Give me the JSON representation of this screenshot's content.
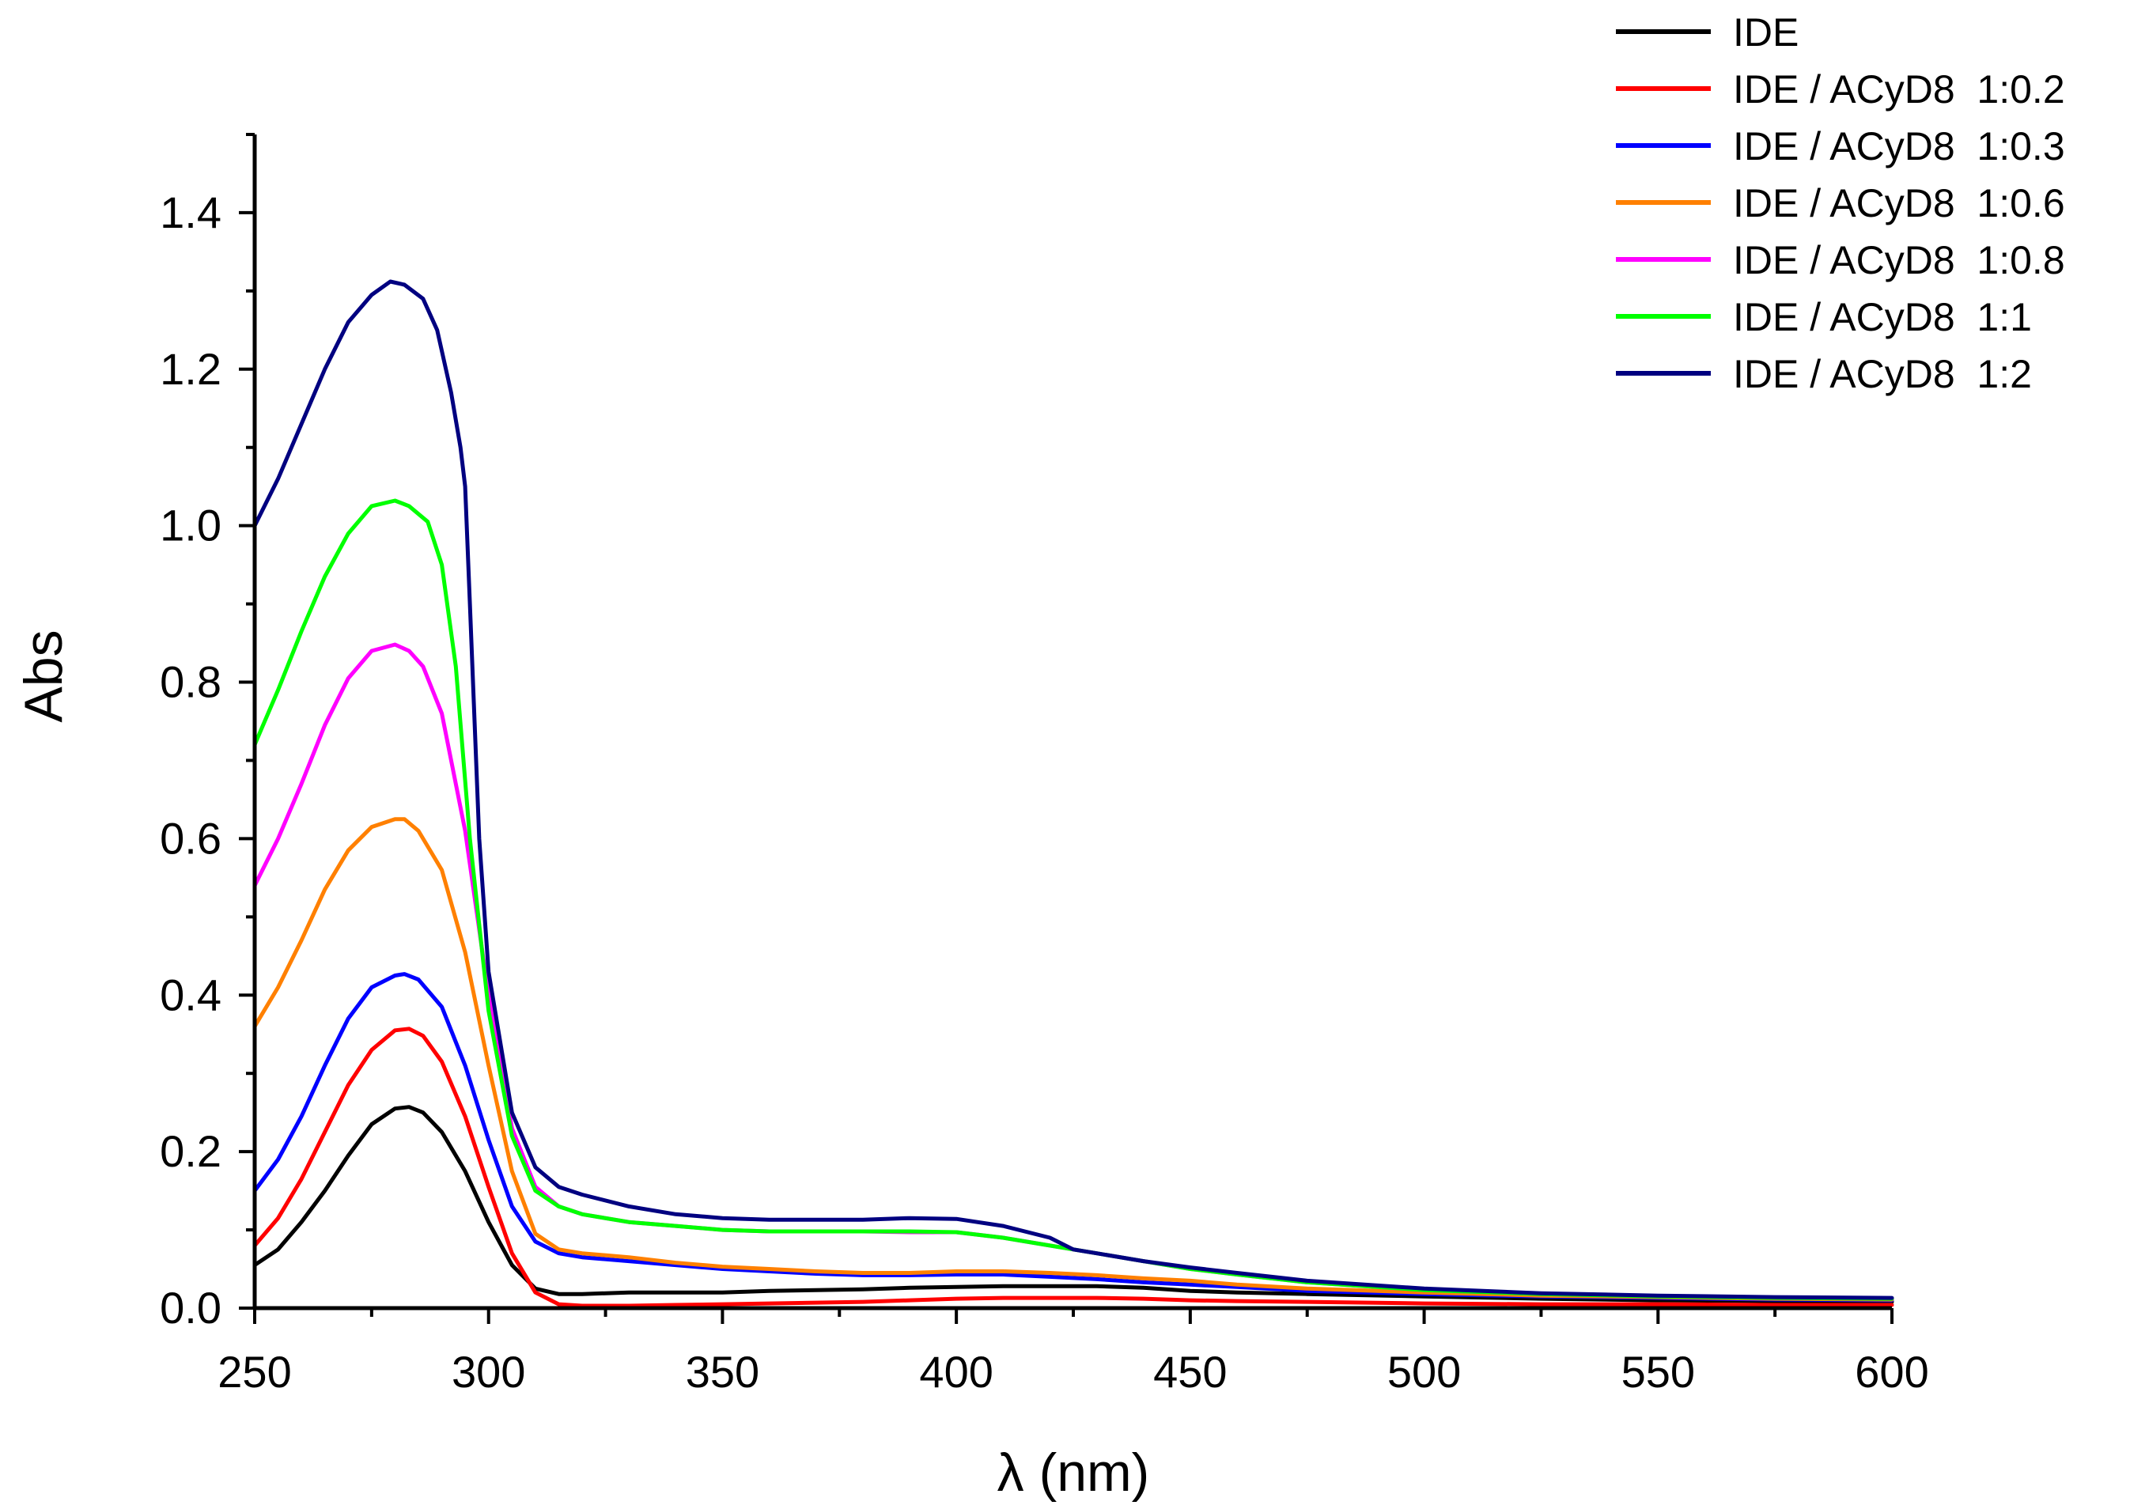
{
  "chart_data": {
    "type": "line",
    "title": "",
    "xlabel": "λ (nm)",
    "ylabel": "Abs",
    "xlim": [
      250,
      600
    ],
    "ylim": [
      0,
      1.5
    ],
    "xticks": [
      250,
      300,
      350,
      400,
      450,
      500,
      550,
      600
    ],
    "yticks": [
      0.0,
      0.2,
      0.4,
      0.6,
      0.8,
      1.0,
      1.2,
      1.4
    ],
    "xtick_labels": [
      "250",
      "300",
      "350",
      "400",
      "450",
      "500",
      "550",
      "600"
    ],
    "ytick_labels": [
      "0.0",
      "0.2",
      "0.4",
      "0.6",
      "0.8",
      "1.0",
      "1.2",
      "1.4"
    ],
    "grid": false,
    "legend_position": "top-right",
    "series": [
      {
        "name": "IDE",
        "color": "#000000",
        "points": [
          [
            250,
            0.055
          ],
          [
            255,
            0.075
          ],
          [
            260,
            0.11
          ],
          [
            265,
            0.15
          ],
          [
            270,
            0.195
          ],
          [
            275,
            0.235
          ],
          [
            280,
            0.255
          ],
          [
            283,
            0.257
          ],
          [
            286,
            0.25
          ],
          [
            290,
            0.225
          ],
          [
            295,
            0.175
          ],
          [
            300,
            0.11
          ],
          [
            305,
            0.055
          ],
          [
            310,
            0.025
          ],
          [
            315,
            0.018
          ],
          [
            320,
            0.018
          ],
          [
            330,
            0.02
          ],
          [
            340,
            0.02
          ],
          [
            350,
            0.02
          ],
          [
            360,
            0.022
          ],
          [
            370,
            0.023
          ],
          [
            380,
            0.024
          ],
          [
            390,
            0.026
          ],
          [
            400,
            0.027
          ],
          [
            410,
            0.028
          ],
          [
            420,
            0.028
          ],
          [
            430,
            0.028
          ],
          [
            440,
            0.026
          ],
          [
            450,
            0.022
          ],
          [
            460,
            0.02
          ],
          [
            475,
            0.018
          ],
          [
            500,
            0.015
          ],
          [
            525,
            0.012
          ],
          [
            550,
            0.01
          ],
          [
            575,
            0.009
          ],
          [
            600,
            0.008
          ]
        ]
      },
      {
        "name": "IDE / ACyD8  1:0.2",
        "color": "#ff0000",
        "points": [
          [
            250,
            0.08
          ],
          [
            255,
            0.115
          ],
          [
            260,
            0.165
          ],
          [
            265,
            0.225
          ],
          [
            270,
            0.285
          ],
          [
            275,
            0.33
          ],
          [
            280,
            0.355
          ],
          [
            283,
            0.357
          ],
          [
            286,
            0.348
          ],
          [
            290,
            0.315
          ],
          [
            295,
            0.245
          ],
          [
            300,
            0.155
          ],
          [
            305,
            0.07
          ],
          [
            310,
            0.02
          ],
          [
            315,
            0.005
          ],
          [
            320,
            0.003
          ],
          [
            330,
            0.003
          ],
          [
            340,
            0.004
          ],
          [
            350,
            0.005
          ],
          [
            360,
            0.006
          ],
          [
            370,
            0.007
          ],
          [
            380,
            0.008
          ],
          [
            390,
            0.01
          ],
          [
            400,
            0.012
          ],
          [
            410,
            0.013
          ],
          [
            420,
            0.013
          ],
          [
            430,
            0.013
          ],
          [
            440,
            0.012
          ],
          [
            450,
            0.01
          ],
          [
            460,
            0.009
          ],
          [
            475,
            0.008
          ],
          [
            500,
            0.006
          ],
          [
            525,
            0.005
          ],
          [
            550,
            0.005
          ],
          [
            575,
            0.004
          ],
          [
            600,
            0.004
          ]
        ]
      },
      {
        "name": "IDE / ACyD8  1:0.3",
        "color": "#0000ff",
        "points": [
          [
            250,
            0.15
          ],
          [
            255,
            0.19
          ],
          [
            260,
            0.245
          ],
          [
            265,
            0.31
          ],
          [
            270,
            0.37
          ],
          [
            275,
            0.41
          ],
          [
            280,
            0.425
          ],
          [
            282,
            0.427
          ],
          [
            285,
            0.42
          ],
          [
            290,
            0.385
          ],
          [
            295,
            0.31
          ],
          [
            300,
            0.215
          ],
          [
            305,
            0.13
          ],
          [
            310,
            0.085
          ],
          [
            315,
            0.07
          ],
          [
            320,
            0.065
          ],
          [
            330,
            0.06
          ],
          [
            340,
            0.055
          ],
          [
            350,
            0.05
          ],
          [
            360,
            0.047
          ],
          [
            370,
            0.044
          ],
          [
            380,
            0.042
          ],
          [
            390,
            0.042
          ],
          [
            400,
            0.043
          ],
          [
            410,
            0.043
          ],
          [
            420,
            0.04
          ],
          [
            430,
            0.037
          ],
          [
            440,
            0.033
          ],
          [
            450,
            0.03
          ],
          [
            460,
            0.027
          ],
          [
            475,
            0.022
          ],
          [
            500,
            0.018
          ],
          [
            525,
            0.015
          ],
          [
            550,
            0.013
          ],
          [
            575,
            0.011
          ],
          [
            600,
            0.01
          ]
        ]
      },
      {
        "name": "IDE / ACyD8  1:0.6",
        "color": "#ff8000",
        "points": [
          [
            250,
            0.36
          ],
          [
            255,
            0.41
          ],
          [
            260,
            0.47
          ],
          [
            265,
            0.535
          ],
          [
            270,
            0.585
          ],
          [
            275,
            0.615
          ],
          [
            280,
            0.625
          ],
          [
            282,
            0.625
          ],
          [
            285,
            0.61
          ],
          [
            290,
            0.56
          ],
          [
            295,
            0.455
          ],
          [
            300,
            0.31
          ],
          [
            305,
            0.175
          ],
          [
            310,
            0.095
          ],
          [
            315,
            0.075
          ],
          [
            320,
            0.07
          ],
          [
            330,
            0.065
          ],
          [
            340,
            0.058
          ],
          [
            350,
            0.053
          ],
          [
            360,
            0.05
          ],
          [
            370,
            0.047
          ],
          [
            380,
            0.045
          ],
          [
            390,
            0.045
          ],
          [
            400,
            0.047
          ],
          [
            410,
            0.047
          ],
          [
            420,
            0.045
          ],
          [
            430,
            0.042
          ],
          [
            440,
            0.038
          ],
          [
            450,
            0.035
          ],
          [
            460,
            0.03
          ],
          [
            475,
            0.025
          ],
          [
            500,
            0.02
          ],
          [
            525,
            0.016
          ],
          [
            550,
            0.014
          ],
          [
            575,
            0.012
          ],
          [
            600,
            0.011
          ]
        ]
      },
      {
        "name": "IDE / ACyD8  1:0.8",
        "color": "#ff00ff",
        "points": [
          [
            250,
            0.54
          ],
          [
            255,
            0.6
          ],
          [
            260,
            0.67
          ],
          [
            265,
            0.745
          ],
          [
            270,
            0.805
          ],
          [
            275,
            0.84
          ],
          [
            280,
            0.848
          ],
          [
            283,
            0.84
          ],
          [
            286,
            0.82
          ],
          [
            290,
            0.76
          ],
          [
            295,
            0.61
          ],
          [
            300,
            0.4
          ],
          [
            305,
            0.23
          ],
          [
            310,
            0.155
          ],
          [
            315,
            0.13
          ],
          [
            320,
            0.12
          ],
          [
            330,
            0.11
          ],
          [
            340,
            0.105
          ],
          [
            350,
            0.1
          ],
          [
            360,
            0.098
          ],
          [
            370,
            0.098
          ],
          [
            380,
            0.098
          ],
          [
            390,
            0.097
          ],
          [
            400,
            0.097
          ],
          [
            410,
            0.09
          ],
          [
            420,
            0.08
          ],
          [
            430,
            0.07
          ],
          [
            440,
            0.06
          ],
          [
            450,
            0.05
          ],
          [
            460,
            0.043
          ],
          [
            475,
            0.033
          ],
          [
            500,
            0.023
          ],
          [
            525,
            0.018
          ],
          [
            550,
            0.015
          ],
          [
            575,
            0.013
          ],
          [
            600,
            0.012
          ]
        ]
      },
      {
        "name": "IDE / ACyD8  1:1",
        "color": "#00ff00",
        "points": [
          [
            250,
            0.72
          ],
          [
            255,
            0.79
          ],
          [
            260,
            0.865
          ],
          [
            265,
            0.935
          ],
          [
            270,
            0.99
          ],
          [
            275,
            1.025
          ],
          [
            280,
            1.032
          ],
          [
            283,
            1.025
          ],
          [
            287,
            1.005
          ],
          [
            290,
            0.95
          ],
          [
            293,
            0.82
          ],
          [
            296,
            0.6
          ],
          [
            300,
            0.38
          ],
          [
            305,
            0.22
          ],
          [
            310,
            0.15
          ],
          [
            315,
            0.13
          ],
          [
            320,
            0.12
          ],
          [
            330,
            0.11
          ],
          [
            340,
            0.105
          ],
          [
            350,
            0.1
          ],
          [
            360,
            0.098
          ],
          [
            370,
            0.098
          ],
          [
            380,
            0.098
          ],
          [
            390,
            0.098
          ],
          [
            400,
            0.097
          ],
          [
            410,
            0.09
          ],
          [
            420,
            0.08
          ],
          [
            430,
            0.07
          ],
          [
            440,
            0.06
          ],
          [
            450,
            0.05
          ],
          [
            460,
            0.043
          ],
          [
            475,
            0.033
          ],
          [
            500,
            0.023
          ],
          [
            525,
            0.018
          ],
          [
            550,
            0.015
          ],
          [
            575,
            0.013
          ],
          [
            600,
            0.012
          ]
        ]
      },
      {
        "name": "IDE / ACyD8  1:2",
        "color": "#000080",
        "points": [
          [
            250,
            1.0
          ],
          [
            255,
            1.06
          ],
          [
            260,
            1.13
          ],
          [
            265,
            1.2
          ],
          [
            270,
            1.26
          ],
          [
            275,
            1.295
          ],
          [
            279,
            1.312
          ],
          [
            282,
            1.308
          ],
          [
            286,
            1.29
          ],
          [
            289,
            1.25
          ],
          [
            292,
            1.17
          ],
          [
            294,
            1.1
          ],
          [
            295,
            1.05
          ],
          [
            296,
            0.9
          ],
          [
            297,
            0.75
          ],
          [
            298,
            0.6
          ],
          [
            300,
            0.43
          ],
          [
            305,
            0.25
          ],
          [
            310,
            0.18
          ],
          [
            315,
            0.155
          ],
          [
            320,
            0.145
          ],
          [
            330,
            0.13
          ],
          [
            340,
            0.12
          ],
          [
            350,
            0.115
          ],
          [
            360,
            0.113
          ],
          [
            370,
            0.113
          ],
          [
            380,
            0.113
          ],
          [
            390,
            0.115
          ],
          [
            400,
            0.114
          ],
          [
            410,
            0.105
          ],
          [
            420,
            0.09
          ],
          [
            425,
            0.075
          ],
          [
            430,
            0.07
          ],
          [
            440,
            0.06
          ],
          [
            450,
            0.052
          ],
          [
            460,
            0.045
          ],
          [
            475,
            0.035
          ],
          [
            500,
            0.025
          ],
          [
            525,
            0.019
          ],
          [
            550,
            0.016
          ],
          [
            575,
            0.014
          ],
          [
            600,
            0.013
          ]
        ]
      }
    ]
  }
}
